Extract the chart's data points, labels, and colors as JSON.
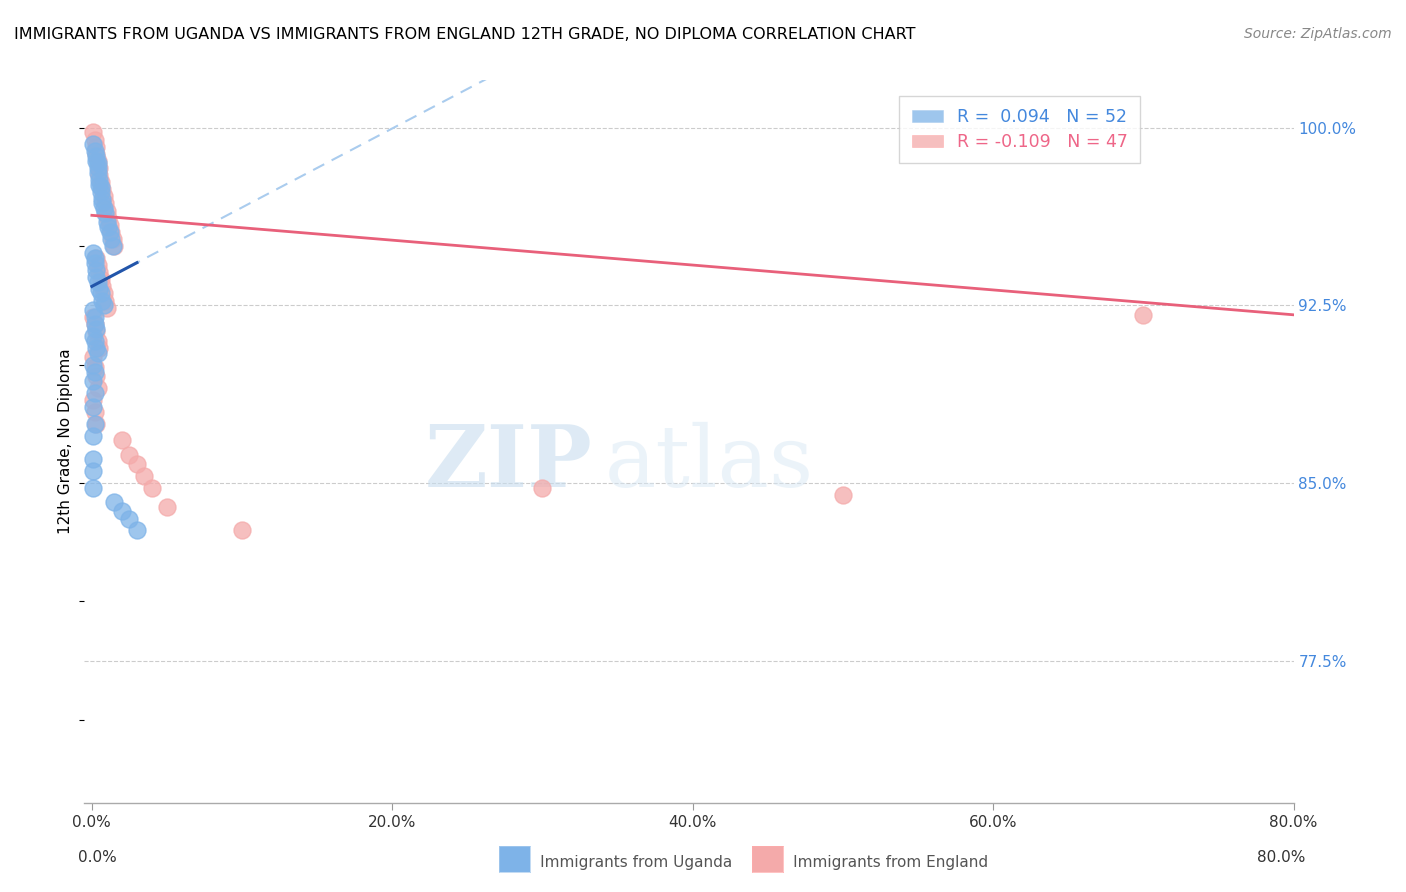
{
  "title": "IMMIGRANTS FROM UGANDA VS IMMIGRANTS FROM ENGLAND 12TH GRADE, NO DIPLOMA CORRELATION CHART",
  "source": "Source: ZipAtlas.com",
  "ylabel": "12th Grade, No Diploma",
  "x_tick_labels": [
    "0.0%",
    "20.0%",
    "40.0%",
    "60.0%",
    "80.0%"
  ],
  "x_tick_values": [
    0.0,
    0.2,
    0.4,
    0.6,
    0.8
  ],
  "y_tick_labels": [
    "100.0%",
    "92.5%",
    "85.0%",
    "77.5%"
  ],
  "y_tick_values": [
    1.0,
    0.925,
    0.85,
    0.775
  ],
  "xlim": [
    -0.005,
    0.8
  ],
  "ylim": [
    0.715,
    1.02
  ],
  "legend_line1": "R =  0.094   N = 52",
  "legend_line2": "R = -0.109   N = 47",
  "uganda_color": "#7EB3E8",
  "england_color": "#F4AAAA",
  "uganda_trend_color": "#2255AA",
  "england_trend_color": "#E8607A",
  "dashed_line_color": "#AACCEE",
  "watermark_zip": "ZIP",
  "watermark_atlas": "atlas",
  "legend_text_uganda_color": "#4488DD",
  "legend_text_england_color": "#EE6688",
  "uganda_x": [
    0.001,
    0.002,
    0.003,
    0.003,
    0.004,
    0.004,
    0.004,
    0.005,
    0.005,
    0.006,
    0.006,
    0.007,
    0.007,
    0.008,
    0.009,
    0.01,
    0.011,
    0.012,
    0.013,
    0.014,
    0.001,
    0.002,
    0.002,
    0.003,
    0.003,
    0.004,
    0.005,
    0.006,
    0.007,
    0.008,
    0.001,
    0.002,
    0.002,
    0.003,
    0.001,
    0.002,
    0.003,
    0.004,
    0.001,
    0.002,
    0.001,
    0.002,
    0.001,
    0.002,
    0.001,
    0.001,
    0.001,
    0.001,
    0.015,
    0.02,
    0.025,
    0.03
  ],
  "uganda_y": [
    0.993,
    0.99,
    0.988,
    0.986,
    0.985,
    0.983,
    0.981,
    0.978,
    0.976,
    0.975,
    0.973,
    0.97,
    0.968,
    0.966,
    0.964,
    0.96,
    0.958,
    0.956,
    0.953,
    0.95,
    0.947,
    0.945,
    0.943,
    0.94,
    0.937,
    0.935,
    0.932,
    0.93,
    0.927,
    0.925,
    0.923,
    0.92,
    0.917,
    0.915,
    0.912,
    0.91,
    0.907,
    0.905,
    0.9,
    0.897,
    0.893,
    0.888,
    0.882,
    0.875,
    0.87,
    0.86,
    0.855,
    0.848,
    0.842,
    0.838,
    0.835,
    0.83
  ],
  "england_x": [
    0.001,
    0.002,
    0.003,
    0.003,
    0.004,
    0.005,
    0.005,
    0.006,
    0.007,
    0.008,
    0.009,
    0.01,
    0.011,
    0.012,
    0.013,
    0.014,
    0.015,
    0.003,
    0.004,
    0.005,
    0.006,
    0.007,
    0.008,
    0.009,
    0.01,
    0.001,
    0.002,
    0.003,
    0.004,
    0.005,
    0.001,
    0.002,
    0.003,
    0.004,
    0.001,
    0.002,
    0.003,
    0.02,
    0.025,
    0.03,
    0.035,
    0.04,
    0.05,
    0.1,
    0.3,
    0.5,
    0.7
  ],
  "england_y": [
    0.998,
    0.995,
    0.992,
    0.989,
    0.986,
    0.983,
    0.98,
    0.977,
    0.974,
    0.971,
    0.968,
    0.965,
    0.962,
    0.959,
    0.956,
    0.953,
    0.95,
    0.945,
    0.942,
    0.939,
    0.936,
    0.933,
    0.93,
    0.927,
    0.924,
    0.92,
    0.917,
    0.914,
    0.91,
    0.907,
    0.903,
    0.899,
    0.895,
    0.89,
    0.885,
    0.88,
    0.875,
    0.868,
    0.862,
    0.858,
    0.853,
    0.848,
    0.84,
    0.83,
    0.848,
    0.845,
    0.921
  ]
}
